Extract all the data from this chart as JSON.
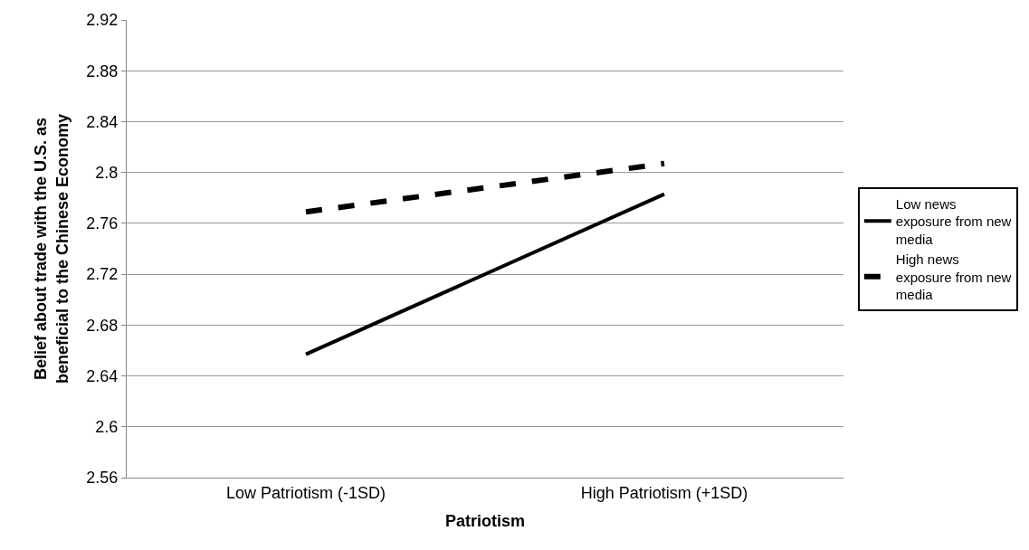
{
  "chart_data": {
    "type": "line",
    "xlabel": "Patriotism",
    "ylabel": "Belief about trade with the U.S. as\nbeneficial to the Chinese Economy",
    "categories": [
      "Low Patriotism (-1SD)",
      "High Patriotism (+1SD)"
    ],
    "series": [
      {
        "name": "Low news\nexposure from new\nmedia",
        "color": "#000000",
        "values": [
          2.657,
          2.783
        ],
        "line_style": "solid"
      },
      {
        "name": "High news\nexposure from new\nmedia",
        "color": "#000000",
        "values": [
          2.769,
          2.807
        ],
        "line_style": "dashed"
      }
    ],
    "ylim": [
      2.56,
      2.92
    ],
    "yticks": [
      2.56,
      2.6,
      2.64,
      2.68,
      2.72,
      2.76,
      2.8,
      2.84,
      2.88,
      2.92
    ],
    "grid": "y",
    "legend": "right",
    "marker": "none"
  }
}
